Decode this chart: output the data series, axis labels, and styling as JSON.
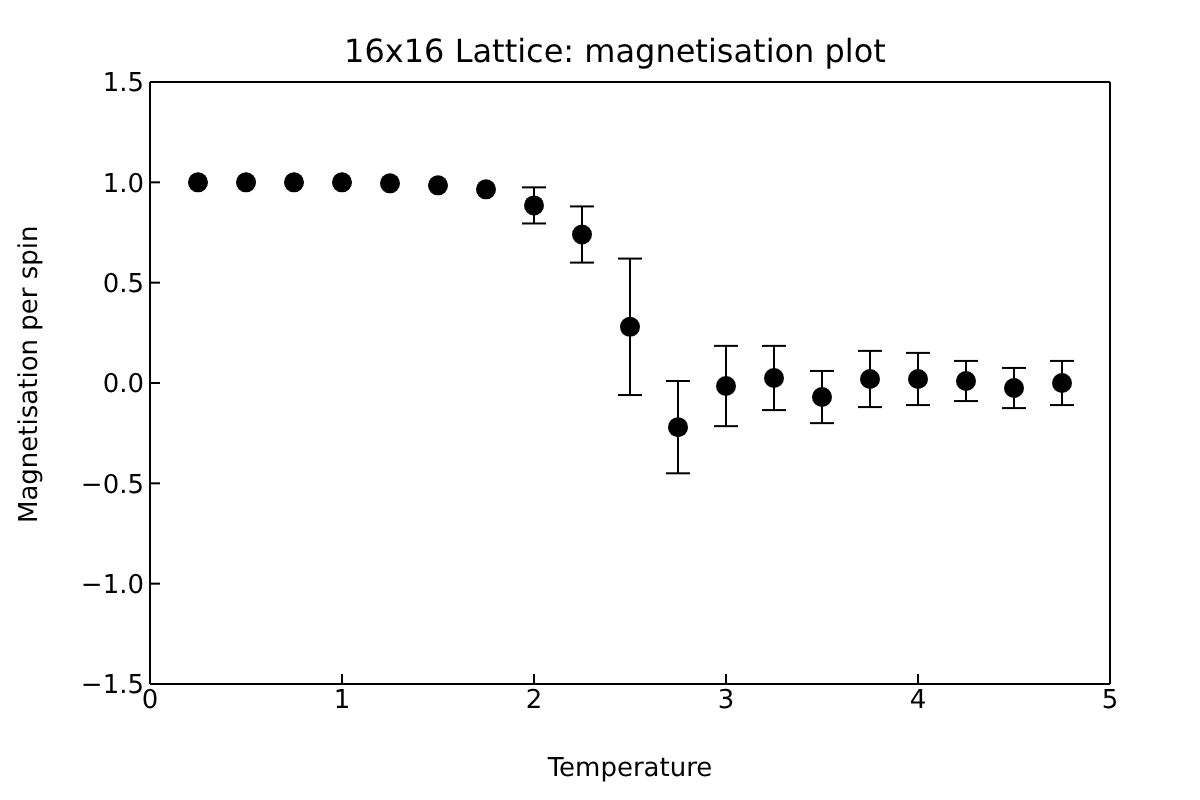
{
  "chart_data": {
    "type": "scatter",
    "title": "16x16 Lattice: magnetisation plot",
    "xlabel": "Temperature",
    "ylabel": "Magnetisation per spin",
    "x": [
      0.25,
      0.5,
      0.75,
      1.0,
      1.25,
      1.5,
      1.75,
      2.0,
      2.25,
      2.5,
      2.75,
      3.0,
      3.25,
      3.5,
      3.75,
      4.0,
      4.25,
      4.5,
      4.75
    ],
    "values": [
      1.0,
      1.0,
      1.0,
      1.0,
      0.995,
      0.985,
      0.965,
      0.885,
      0.74,
      0.28,
      -0.22,
      -0.015,
      0.025,
      -0.07,
      0.02,
      0.02,
      0.01,
      -0.025,
      0.0
    ],
    "errors": [
      null,
      null,
      null,
      null,
      null,
      null,
      null,
      0.09,
      0.14,
      0.34,
      0.23,
      0.2,
      0.16,
      0.13,
      0.14,
      0.13,
      0.1,
      0.1,
      0.11
    ],
    "color": "#000000",
    "marker": "circle",
    "grid": false,
    "legend": false,
    "xlim": [
      0,
      5
    ],
    "xticks": [
      0,
      1,
      2,
      3,
      4,
      5
    ],
    "ylim": [
      -1.5,
      1.5
    ],
    "yticks": [
      {
        "value": -1.5,
        "label": "−1.5"
      },
      {
        "value": -1,
        "label": "−1.0"
      },
      {
        "value": -0.5,
        "label": "−0.5"
      },
      {
        "value": 0,
        "label": "0.0"
      },
      {
        "value": 0.5,
        "label": "0.5"
      },
      {
        "value": 1,
        "label": "1.0"
      },
      {
        "value": 1.5,
        "label": "1.5"
      }
    ]
  }
}
